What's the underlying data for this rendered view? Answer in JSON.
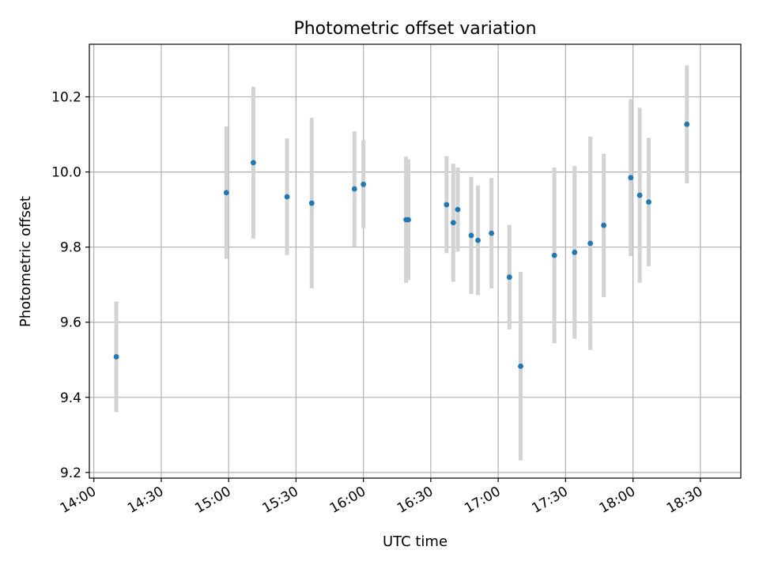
{
  "chart_data": {
    "type": "scatter",
    "title": "Photometric offset variation",
    "xlabel": "UTC time",
    "ylabel": "Photometric offset",
    "xlim": [
      "13:58",
      "18:48"
    ],
    "ylim": [
      9.185,
      10.34
    ],
    "xticks": [
      "14:00",
      "14:30",
      "15:00",
      "15:30",
      "16:00",
      "16:30",
      "17:00",
      "17:30",
      "18:00",
      "18:30"
    ],
    "yticks": [
      9.2,
      9.4,
      9.6,
      9.8,
      10.0,
      10.2
    ],
    "ytick_labels": [
      "9.2",
      "9.4",
      "9.6",
      "9.8",
      "10.0",
      "10.2"
    ],
    "grid": true,
    "marker_color": "#1f77b4",
    "errorbar_color": "#d3d3d3",
    "points": [
      {
        "x": "14:10",
        "y": 9.508,
        "err": 0.147
      },
      {
        "x": "14:59",
        "y": 9.945,
        "err": 0.176
      },
      {
        "x": "15:11",
        "y": 10.025,
        "err": 0.202
      },
      {
        "x": "15:26",
        "y": 9.934,
        "err": 0.155
      },
      {
        "x": "15:37",
        "y": 9.917,
        "err": 0.227
      },
      {
        "x": "15:56",
        "y": 9.955,
        "err": 0.153
      },
      {
        "x": "16:00",
        "y": 9.967,
        "err": 0.117
      },
      {
        "x": "16:19",
        "y": 9.873,
        "err": 0.168
      },
      {
        "x": "16:20",
        "y": 9.873,
        "err": 0.161
      },
      {
        "x": "16:37",
        "y": 9.913,
        "err": 0.129
      },
      {
        "x": "16:40",
        "y": 9.865,
        "err": 0.157
      },
      {
        "x": "16:42",
        "y": 9.9,
        "err": 0.112
      },
      {
        "x": "16:48",
        "y": 9.831,
        "err": 0.156
      },
      {
        "x": "16:51",
        "y": 9.818,
        "err": 0.146
      },
      {
        "x": "16:57",
        "y": 9.837,
        "err": 0.147
      },
      {
        "x": "17:05",
        "y": 9.72,
        "err": 0.139
      },
      {
        "x": "17:10",
        "y": 9.483,
        "err": 0.251
      },
      {
        "x": "17:25",
        "y": 9.778,
        "err": 0.234
      },
      {
        "x": "17:34",
        "y": 9.786,
        "err": 0.23
      },
      {
        "x": "17:41",
        "y": 9.81,
        "err": 0.284
      },
      {
        "x": "17:47",
        "y": 9.858,
        "err": 0.191
      },
      {
        "x": "17:59",
        "y": 9.985,
        "err": 0.209
      },
      {
        "x": "18:03",
        "y": 9.938,
        "err": 0.233
      },
      {
        "x": "18:07",
        "y": 9.92,
        "err": 0.171
      },
      {
        "x": "18:24",
        "y": 10.127,
        "err": 0.157
      }
    ]
  }
}
